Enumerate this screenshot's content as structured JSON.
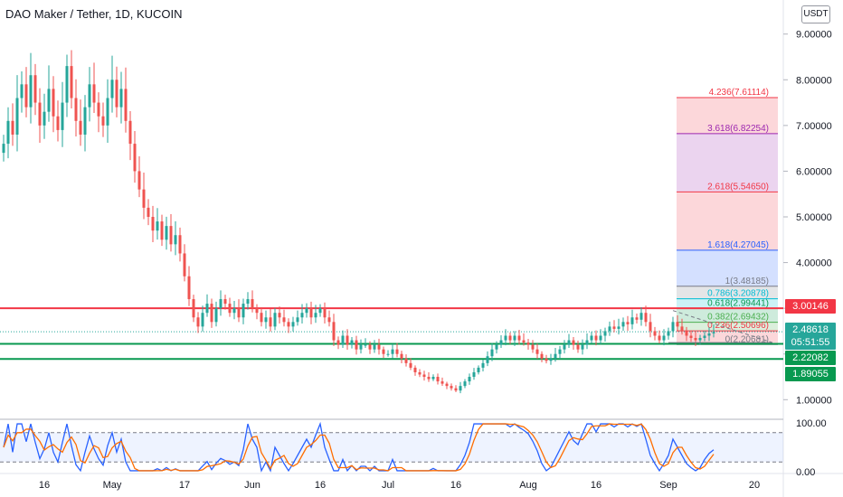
{
  "header": {
    "title": "DAO Maker / Tether, 1D, KUCOIN",
    "currency_button": "USDT"
  },
  "colors": {
    "up": "#26a69a",
    "down": "#ef5350",
    "resistance": "#f23645",
    "support": "#089950",
    "stoch_k": "#2962ff",
    "stoch_d": "#ff6d00"
  },
  "price_tags": {
    "resistance": "3.00146",
    "current": "2.48618",
    "countdown": "05:51:55",
    "support_1": "2.22082",
    "support_2": "1.89055"
  },
  "fib_labels": [
    {
      "level": 4.236,
      "text": "4.236(7.61114)",
      "price": 7.61114,
      "color": "#f23645"
    },
    {
      "level": 3.618,
      "text": "3.618(6.82254)",
      "price": 6.82254,
      "color": "#9c27b0"
    },
    {
      "level": 2.618,
      "text": "2.618(5.54650)",
      "price": 5.5465,
      "color": "#f23645"
    },
    {
      "level": 1.618,
      "text": "1.618(4.27045)",
      "price": 4.27045,
      "color": "#2962ff"
    },
    {
      "level": 1,
      "text": "1(3.48185)",
      "price": 3.48185,
      "color": "#787b86"
    },
    {
      "level": 0.786,
      "text": "0.786(3.20878)",
      "price": 3.20878,
      "color": "#00bcd4"
    },
    {
      "level": 0.618,
      "text": "0.618(2.99441)",
      "price": 2.99441,
      "color": "#089950"
    },
    {
      "level": 0.382,
      "text": "0.382(2.69432)",
      "price": 2.69432,
      "color": "#4caf50"
    },
    {
      "level": 0.236,
      "text": "0.236(2.50696)",
      "price": 2.50696,
      "color": "#f23645"
    },
    {
      "level": 0,
      "text": "0(2.20681)",
      "price": 2.20681,
      "color": "#787b86"
    }
  ],
  "chart_data": [
    {
      "type": "candlestick",
      "title": "DAO Maker / Tether, 1D, KUCOIN",
      "y_ticks": [
        "9.00000",
        "8.00000",
        "7.00000",
        "6.00000",
        "5.00000",
        "4.00000",
        "3.00000",
        "2.00000",
        "1.00000"
      ],
      "ylim": [
        0.65,
        9.35
      ],
      "x_ticks": [
        {
          "label": "16",
          "index": 9
        },
        {
          "label": "May",
          "index": 24
        },
        {
          "label": "17",
          "index": 40
        },
        {
          "label": "Jun",
          "index": 55
        },
        {
          "label": "16",
          "index": 70
        },
        {
          "label": "Jul",
          "index": 85
        },
        {
          "label": "16",
          "index": 100
        },
        {
          "label": "Aug",
          "index": 116
        },
        {
          "label": "16",
          "index": 131
        },
        {
          "label": "Sep",
          "index": 147
        },
        {
          "label": "20",
          "index": 166
        }
      ],
      "horizontal_lines": [
        {
          "price": 3.00146,
          "color": "#f23645",
          "name": "resistance"
        },
        {
          "price": 2.22082,
          "color": "#089950",
          "name": "support"
        },
        {
          "price": 1.89055,
          "color": "#089950",
          "name": "support"
        }
      ],
      "current_price": 2.48618,
      "ohlc_close": [
        6.6,
        7.1,
        6.8,
        7.6,
        7.9,
        7.4,
        8.1,
        7.5,
        7.0,
        7.3,
        7.8,
        7.2,
        6.9,
        7.5,
        8.3,
        7.6,
        7.1,
        6.8,
        7.4,
        7.9,
        7.5,
        7.2,
        7.0,
        7.6,
        8.0,
        7.4,
        7.8,
        7.1,
        6.6,
        6.0,
        5.6,
        5.2,
        5.0,
        4.7,
        4.9,
        4.5,
        4.8,
        4.4,
        4.6,
        4.2,
        3.7,
        3.2,
        2.8,
        2.6,
        2.9,
        3.1,
        2.7,
        3.0,
        3.2,
        3.1,
        2.9,
        3.0,
        2.8,
        3.1,
        3.2,
        3.0,
        2.9,
        2.7,
        2.8,
        2.6,
        2.9,
        2.8,
        2.7,
        2.6,
        2.7,
        2.8,
        2.9,
        3.0,
        2.8,
        2.9,
        3.0,
        2.8,
        2.7,
        2.3,
        2.2,
        2.4,
        2.2,
        2.3,
        2.1,
        2.2,
        2.2,
        2.1,
        2.2,
        2.1,
        2.0,
        2.0,
        2.1,
        2.0,
        1.9,
        1.8,
        1.7,
        1.6,
        1.55,
        1.5,
        1.45,
        1.5,
        1.4,
        1.35,
        1.3,
        1.25,
        1.2,
        1.3,
        1.4,
        1.5,
        1.6,
        1.7,
        1.8,
        1.95,
        2.1,
        2.2,
        2.3,
        2.4,
        2.3,
        2.4,
        2.3,
        2.25,
        2.2,
        2.1,
        2.0,
        1.9,
        1.85,
        1.9,
        2.0,
        2.1,
        2.2,
        2.3,
        2.2,
        2.1,
        2.2,
        2.3,
        2.4,
        2.3,
        2.4,
        2.5,
        2.6,
        2.55,
        2.6,
        2.7,
        2.65,
        2.8,
        2.75,
        2.9,
        2.7,
        2.5,
        2.4,
        2.3,
        2.4,
        2.5,
        2.7,
        2.6,
        2.5,
        2.4,
        2.35,
        2.3,
        2.35,
        2.4,
        2.45,
        2.48
      ],
      "stochastic": {
        "y_ticks": [
          "100.00",
          "0.00"
        ],
        "levels": [
          80,
          20
        ],
        "ylim": [
          0,
          100
        ]
      }
    }
  ]
}
